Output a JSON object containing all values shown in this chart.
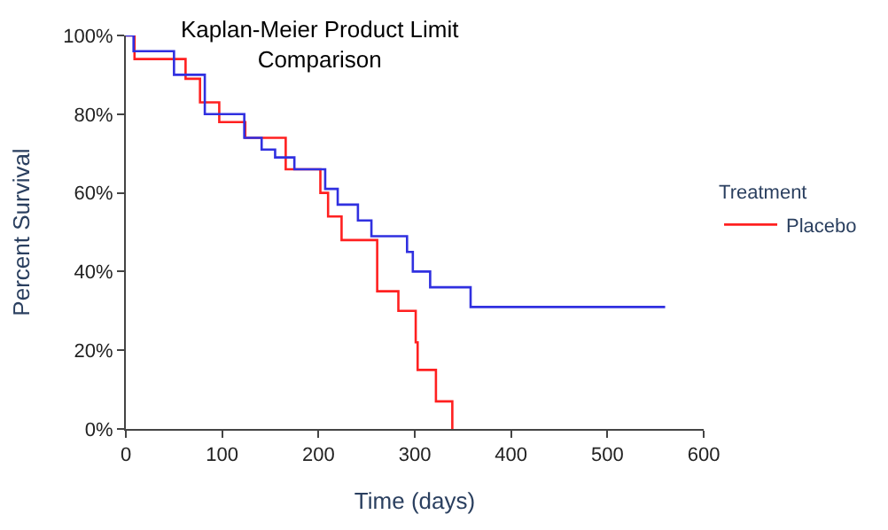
{
  "chart_data": {
    "type": "step",
    "title": "Kaplan-Meier Product Limit\nComparison",
    "xlabel": "Time (days)",
    "ylabel": "Percent Survival",
    "legend_title": "Treatment",
    "legend": "right",
    "series": [
      {
        "name": "Placebo",
        "color": "#ff2020",
        "x": [
          0,
          9,
          62,
          77,
          97,
          124,
          166,
          202,
          210,
          224,
          261,
          283,
          301,
          303,
          322,
          339
        ],
        "values": [
          100,
          94,
          89,
          83,
          78,
          74,
          66,
          60,
          54,
          48,
          35,
          30,
          22,
          15,
          7,
          0
        ]
      },
      {
        "color": "#3030e0",
        "x": [
          0,
          8,
          50,
          82,
          123,
          141,
          155,
          175,
          207,
          220,
          241,
          255,
          292,
          298,
          316,
          358,
          560
        ],
        "values": [
          100,
          96,
          90,
          80,
          74,
          71,
          69,
          66,
          61,
          57,
          53,
          49,
          45,
          40,
          36,
          31,
          31
        ]
      }
    ],
    "xlim": [
      0,
      600
    ],
    "xticks": [
      0,
      100,
      200,
      300,
      400,
      500,
      600
    ],
    "ylim": [
      0,
      100
    ],
    "yticks": [
      {
        "value": 0,
        "label": "0%"
      },
      {
        "value": 20,
        "label": "20%"
      },
      {
        "value": 40,
        "label": "40%"
      },
      {
        "value": 60,
        "label": "60%"
      },
      {
        "value": 80,
        "label": "80%"
      },
      {
        "value": 100,
        "label": "100%"
      }
    ]
  }
}
